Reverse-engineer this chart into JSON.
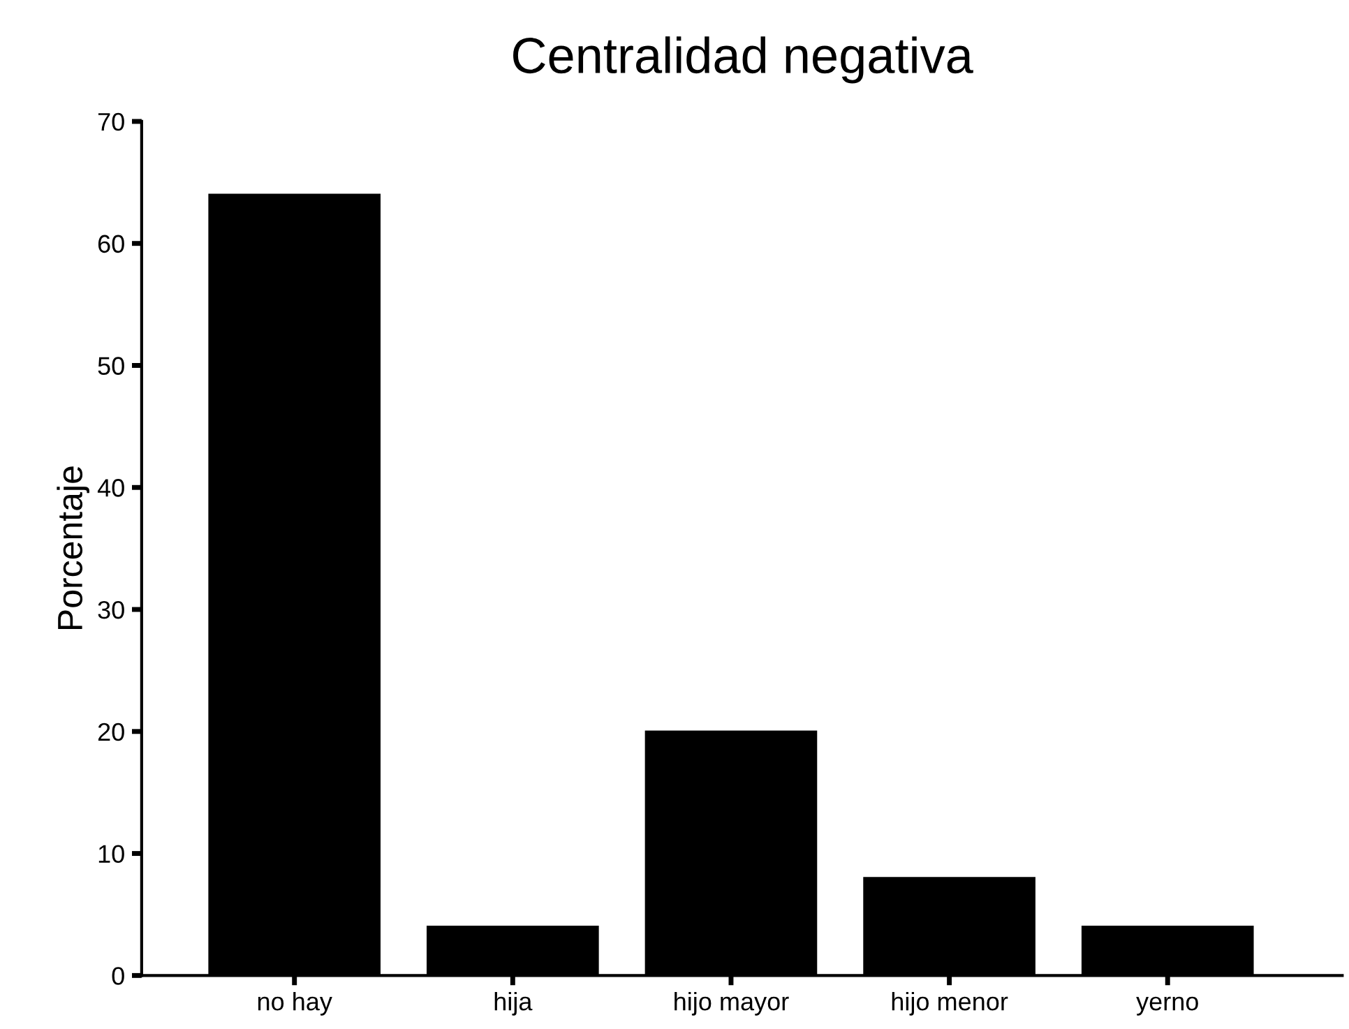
{
  "chart_data": {
    "type": "bar",
    "title": "Centralidad negativa",
    "ylabel": "Porcentaje",
    "categories": [
      "no hay",
      "hija",
      "hijo mayor",
      "hijo menor",
      "yerno"
    ],
    "values": [
      64,
      4,
      20,
      8,
      4
    ],
    "color": "#000000",
    "ylim": [
      0,
      70
    ],
    "yticks": [
      0,
      10,
      20,
      30,
      40,
      50,
      60,
      70
    ],
    "grid": false
  }
}
